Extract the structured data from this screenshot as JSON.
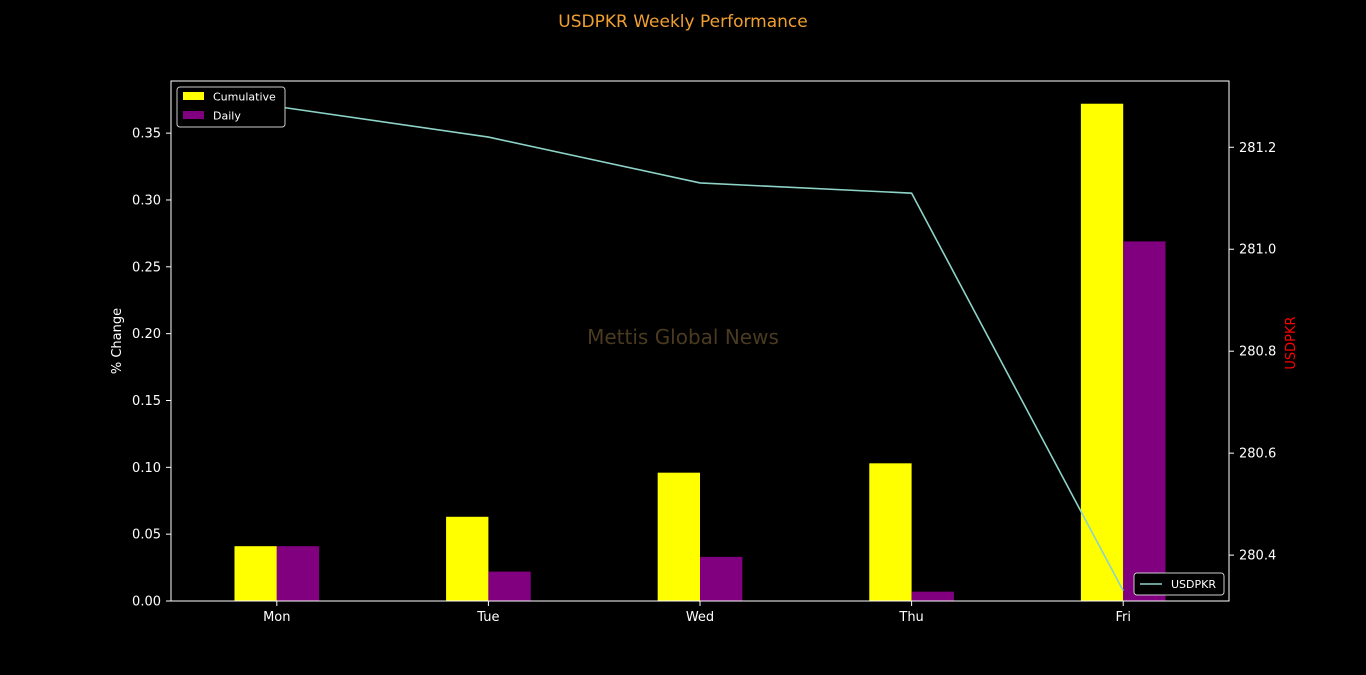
{
  "chart_data": {
    "type": "bar",
    "title": "USDPKR Weekly Performance",
    "watermark": "Mettis Global News",
    "categories": [
      "Mon",
      "Tue",
      "Wed",
      "Thu",
      "Fri"
    ],
    "ylabel": "% Change",
    "ylim": [
      0,
      0.389
    ],
    "yticks": [
      "0.00",
      "0.05",
      "0.10",
      "0.15",
      "0.20",
      "0.25",
      "0.30",
      "0.35"
    ],
    "series": [
      {
        "name": "Cumulative",
        "values": [
          0.041,
          0.063,
          0.096,
          0.103,
          0.372
        ],
        "color": "#ffff00"
      },
      {
        "name": "Daily",
        "values": [
          0.041,
          0.022,
          0.033,
          0.007,
          0.269
        ],
        "color": "#800080"
      }
    ],
    "y2label": "USDPKR",
    "y2lim": [
      280.31,
      281.33
    ],
    "y2ticks": [
      "280.4",
      "280.6",
      "280.8",
      "281.0",
      "281.2"
    ],
    "line_series": {
      "name": "USDPKR",
      "values": [
        281.28,
        281.22,
        281.13,
        281.11,
        280.33
      ],
      "color": "#8dd3c7"
    },
    "legend_bars_position": "top-left",
    "legend_line_position": "bottom-right",
    "grid": false,
    "colors": {
      "background": "#000000",
      "title": "#f0a030",
      "y2label": "#ff0000",
      "axis": "#ffffff",
      "watermark": "#4a3a20"
    }
  }
}
